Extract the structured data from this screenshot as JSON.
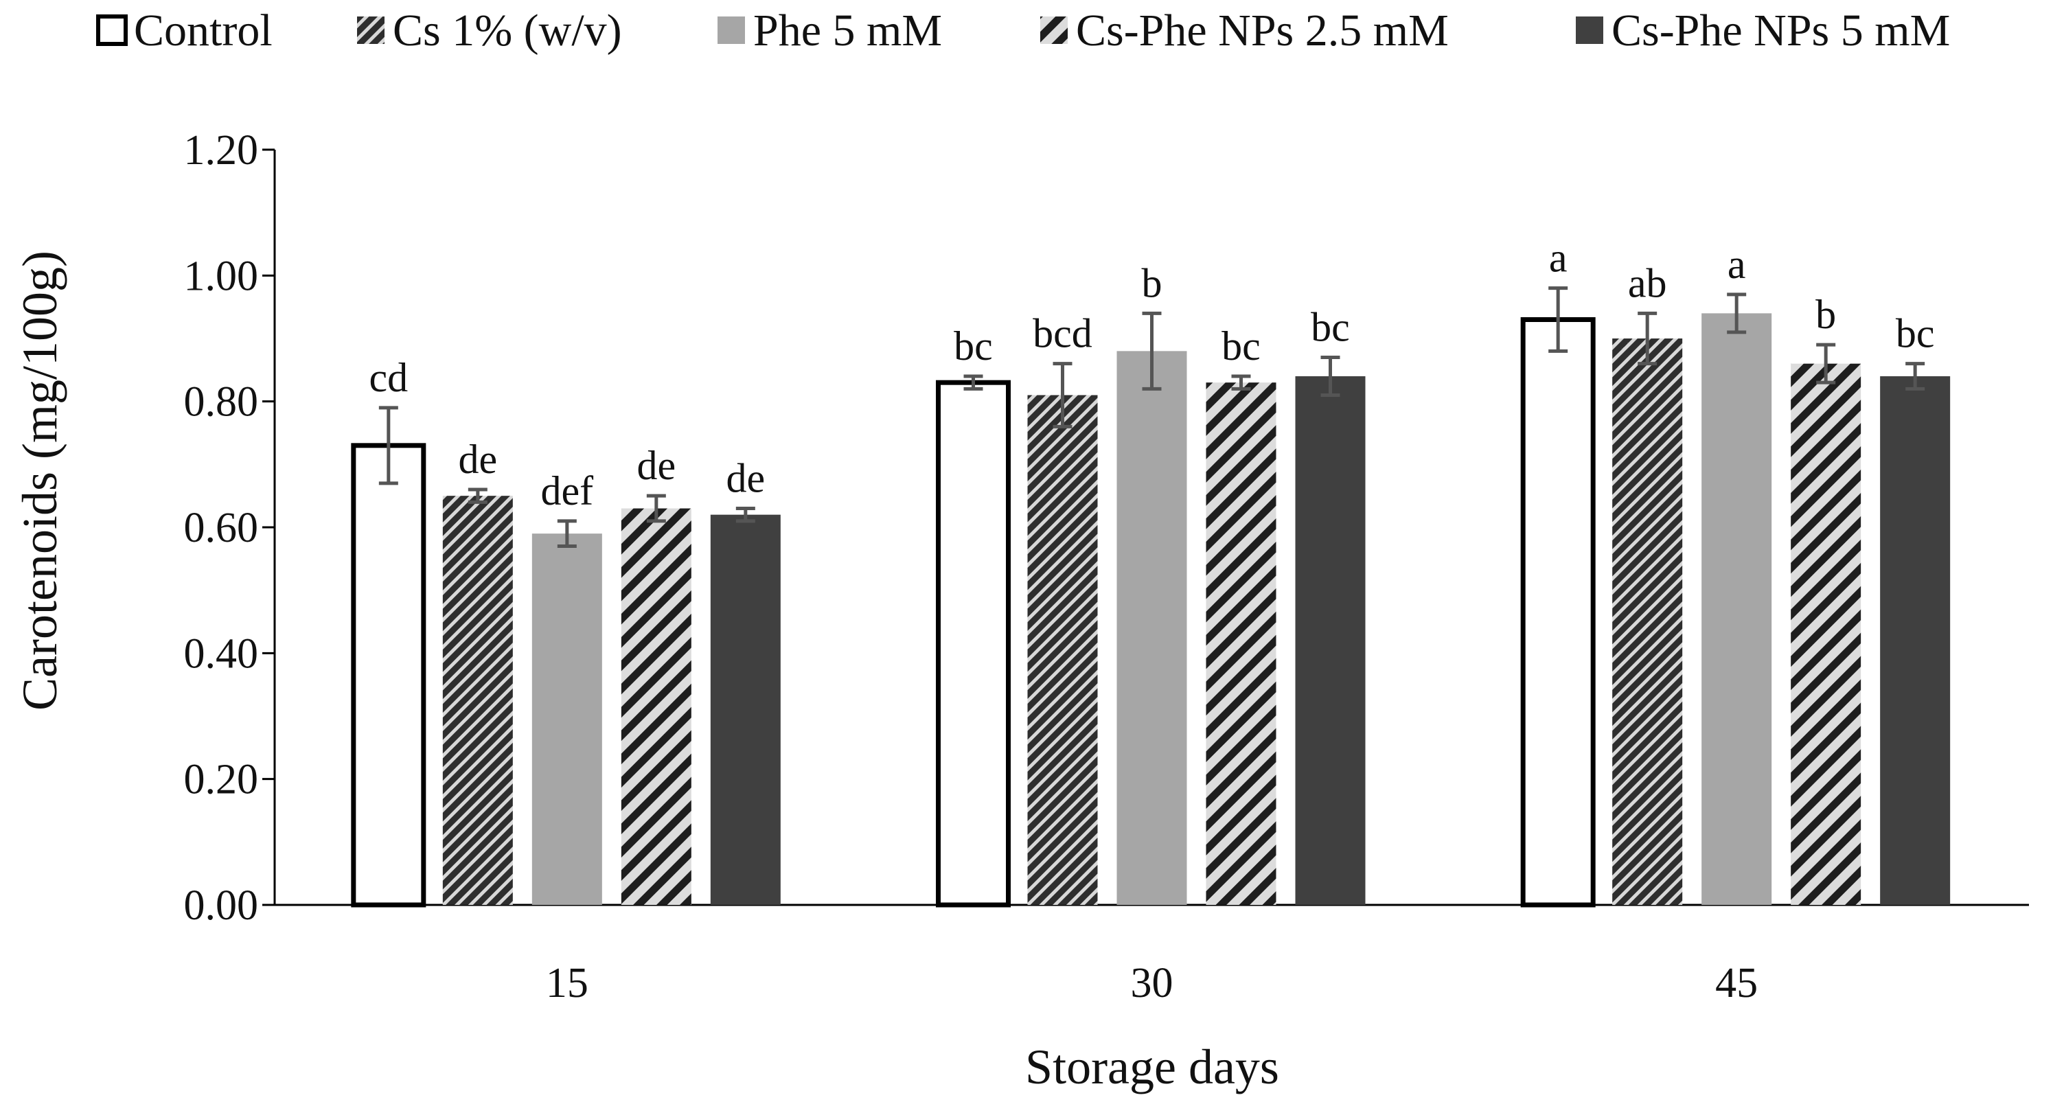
{
  "chart_data": {
    "type": "bar",
    "title": "",
    "xlabel": "Storage days",
    "ylabel": "Carotenoids (mg/100g)",
    "ylim": [
      0,
      1.2
    ],
    "yticks": [
      "0.00",
      "0.20",
      "0.40",
      "0.60",
      "0.80",
      "1.00",
      "1.20"
    ],
    "categories": [
      "15",
      "30",
      "45"
    ],
    "legend_position": "top",
    "grid": false,
    "series": [
      {
        "name": "Control",
        "style": "open",
        "color": "#ffffff",
        "values": [
          0.73,
          0.83,
          0.93
        ],
        "errors": [
          0.06,
          0.01,
          0.05
        ],
        "letters": [
          "cd",
          "bc",
          "a"
        ]
      },
      {
        "name": "Cs 1% (w/v)",
        "style": "dark-diagonal",
        "color": "#3c3c3c",
        "values": [
          0.65,
          0.81,
          0.9
        ],
        "errors": [
          0.01,
          0.05,
          0.04
        ],
        "letters": [
          "de",
          "bcd",
          "ab"
        ]
      },
      {
        "name": "Phe 5 mM",
        "style": "solid",
        "color": "#a6a6a6",
        "values": [
          0.59,
          0.88,
          0.94
        ],
        "errors": [
          0.02,
          0.06,
          0.03
        ],
        "letters": [
          "def",
          "b",
          "a"
        ]
      },
      {
        "name": "Cs-Phe NPs 2.5 mM",
        "style": "wide-diagonal",
        "color": "#2b2b2b",
        "values": [
          0.63,
          0.83,
          0.86
        ],
        "errors": [
          0.02,
          0.01,
          0.03
        ],
        "letters": [
          "de",
          "bc",
          "b"
        ]
      },
      {
        "name": "Cs-Phe NPs 5 mM",
        "style": "solid",
        "color": "#404040",
        "values": [
          0.62,
          0.84,
          0.84
        ],
        "errors": [
          0.01,
          0.03,
          0.02
        ],
        "letters": [
          "de",
          "bc",
          "bc"
        ]
      }
    ]
  }
}
